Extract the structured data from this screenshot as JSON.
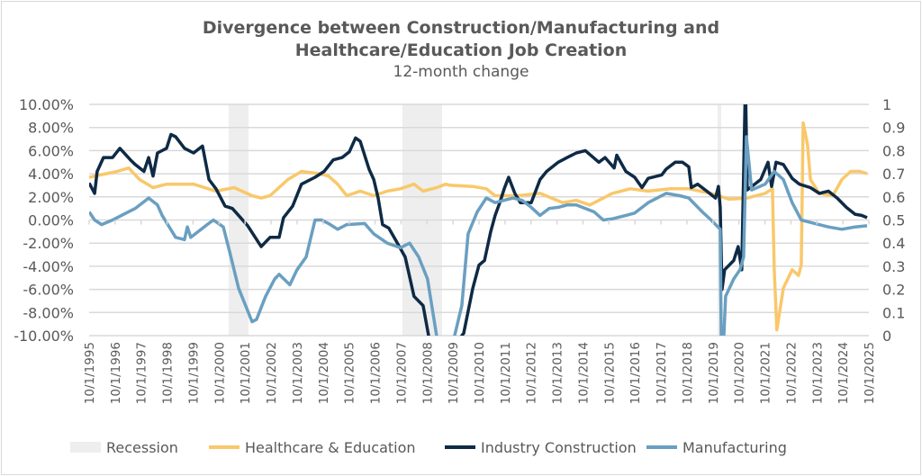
{
  "chart_data": {
    "type": "line",
    "title_line1": "Divergence between Construction/Manufacturing and",
    "title_line2": "Healthcare/Education Job Creation",
    "subtitle": "12-month change",
    "y_left": {
      "min": -10,
      "max": 10,
      "step": 2,
      "ticks": [
        "10.00%",
        "8.00%",
        "6.00%",
        "4.00%",
        "2.00%",
        "0.00%",
        "-2.00%",
        "-4.00%",
        "-6.00%",
        "-8.00%",
        "-10.00%"
      ]
    },
    "y_right": {
      "min": 0,
      "max": 1,
      "ticks": [
        "1",
        "0.9",
        "0.8",
        "0.7",
        "0.6",
        "0.5",
        "0.4",
        "0.3",
        "0.2",
        "0.1",
        "0"
      ]
    },
    "x_range": [
      1995.75,
      2025.75
    ],
    "x_ticks": [
      "10/1/1995",
      "10/1/1996",
      "10/1/1997",
      "10/1/1998",
      "10/1/1999",
      "10/1/2000",
      "10/1/2001",
      "10/1/2002",
      "10/1/2003",
      "10/1/2004",
      "10/1/2005",
      "10/1/2006",
      "10/1/2007",
      "10/1/2008",
      "10/1/2009",
      "10/1/2010",
      "10/1/2011",
      "10/1/2012",
      "10/1/2013",
      "10/1/2014",
      "10/1/2015",
      "10/1/2016",
      "10/1/2017",
      "10/1/2018",
      "10/1/2019",
      "10/1/2020",
      "10/1/2021",
      "10/1/2022",
      "10/1/2023",
      "10/1/2024",
      "10/1/2025"
    ],
    "grid": true,
    "legend_position": "bottom",
    "recession": {
      "name": "Recession",
      "color": "#eeeeee",
      "value": 1,
      "periods": [
        [
          2001.12,
          2001.88
        ],
        [
          2007.8,
          2009.33
        ],
        [
          2019.93,
          2020.07
        ]
      ]
    },
    "series": [
      {
        "name": "Healthcare & Education",
        "color": "#f9c86b",
        "points": [
          [
            1995.75,
            3.7
          ],
          [
            1996.82,
            4.2
          ],
          [
            1997.27,
            4.5
          ],
          [
            1997.69,
            3.5
          ],
          [
            1998.21,
            2.8
          ],
          [
            1998.73,
            3.1
          ],
          [
            1999.25,
            3.1
          ],
          [
            1999.77,
            3.1
          ],
          [
            2000.63,
            2.5
          ],
          [
            2001.33,
            2.8
          ],
          [
            2002.02,
            2.1
          ],
          [
            2002.37,
            1.9
          ],
          [
            2002.71,
            2.1
          ],
          [
            2003.4,
            3.5
          ],
          [
            2003.92,
            4.2
          ],
          [
            2004.62,
            4.0
          ],
          [
            2004.96,
            3.8
          ],
          [
            2005.31,
            3.1
          ],
          [
            2005.66,
            2.1
          ],
          [
            2006.18,
            2.5
          ],
          [
            2006.7,
            2.1
          ],
          [
            2007.22,
            2.5
          ],
          [
            2007.73,
            2.7
          ],
          [
            2008.25,
            3.1
          ],
          [
            2008.6,
            2.5
          ],
          [
            2009.12,
            2.8
          ],
          [
            2009.47,
            3.1
          ],
          [
            2009.64,
            3.0
          ],
          [
            2010.51,
            2.9
          ],
          [
            2011.03,
            2.7
          ],
          [
            2011.37,
            2.1
          ],
          [
            2012.24,
            2.1
          ],
          [
            2013.1,
            2.3
          ],
          [
            2013.97,
            1.5
          ],
          [
            2014.49,
            1.7
          ],
          [
            2015.01,
            1.3
          ],
          [
            2015.88,
            2.3
          ],
          [
            2016.57,
            2.7
          ],
          [
            2017.26,
            2.5
          ],
          [
            2018.13,
            2.7
          ],
          [
            2018.82,
            2.7
          ],
          [
            2019.68,
            2.3
          ],
          [
            2020.38,
            1.8
          ],
          [
            2021.07,
            1.9
          ],
          [
            2021.76,
            2.3
          ],
          [
            2022.04,
            2.7
          ],
          [
            2022.11,
            -4.3
          ],
          [
            2022.21,
            -9.5
          ],
          [
            2022.46,
            -5.9
          ],
          [
            2022.8,
            -4.3
          ],
          [
            2023.04,
            -4.8
          ],
          [
            2023.15,
            -3.9
          ],
          [
            2023.22,
            8.4
          ],
          [
            2023.39,
            6.5
          ],
          [
            2023.5,
            3.5
          ],
          [
            2023.84,
            2.3
          ],
          [
            2024.36,
            2.1
          ],
          [
            2024.71,
            3.5
          ],
          [
            2025.05,
            4.2
          ],
          [
            2025.4,
            4.2
          ],
          [
            2025.68,
            4.0
          ]
        ]
      },
      {
        "name": "Industry Construction",
        "color": "#0e2a45",
        "points": [
          [
            1995.75,
            3.2
          ],
          [
            1995.96,
            2.3
          ],
          [
            1996.06,
            4.2
          ],
          [
            1996.3,
            5.4
          ],
          [
            1996.65,
            5.4
          ],
          [
            1996.93,
            6.2
          ],
          [
            1997.34,
            5.2
          ],
          [
            1997.52,
            4.8
          ],
          [
            1997.86,
            4.2
          ],
          [
            1998.04,
            5.4
          ],
          [
            1998.21,
            3.8
          ],
          [
            1998.38,
            5.8
          ],
          [
            1998.73,
            6.2
          ],
          [
            1998.9,
            7.4
          ],
          [
            1999.08,
            7.2
          ],
          [
            1999.42,
            6.2
          ],
          [
            1999.77,
            5.8
          ],
          [
            2000.11,
            6.4
          ],
          [
            2000.36,
            3.5
          ],
          [
            2000.63,
            2.7
          ],
          [
            2000.98,
            1.2
          ],
          [
            2001.26,
            1.0
          ],
          [
            2001.5,
            0.4
          ],
          [
            2001.85,
            -0.5
          ],
          [
            2002.37,
            -2.3
          ],
          [
            2002.71,
            -1.5
          ],
          [
            2003.06,
            -1.5
          ],
          [
            2003.23,
            0.2
          ],
          [
            2003.58,
            1.2
          ],
          [
            2003.92,
            3.1
          ],
          [
            2004.44,
            3.7
          ],
          [
            2004.79,
            4.2
          ],
          [
            2005.14,
            5.2
          ],
          [
            2005.48,
            5.4
          ],
          [
            2005.76,
            5.9
          ],
          [
            2006.0,
            7.1
          ],
          [
            2006.18,
            6.8
          ],
          [
            2006.52,
            4.4
          ],
          [
            2006.7,
            3.5
          ],
          [
            2006.87,
            1.9
          ],
          [
            2007.04,
            -0.4
          ],
          [
            2007.28,
            -0.7
          ],
          [
            2007.56,
            -1.8
          ],
          [
            2007.91,
            -3.2
          ],
          [
            2008.25,
            -6.6
          ],
          [
            2008.6,
            -7.4
          ],
          [
            2008.81,
            -10
          ],
          [
            2009.29,
            -14
          ],
          [
            2009.81,
            -14
          ],
          [
            2010.09,
            -10
          ],
          [
            2010.16,
            -9.8
          ],
          [
            2010.51,
            -5.9
          ],
          [
            2010.75,
            -3.9
          ],
          [
            2010.96,
            -3.5
          ],
          [
            2011.2,
            -1.0
          ],
          [
            2011.37,
            0.4
          ],
          [
            2011.55,
            1.5
          ],
          [
            2011.72,
            2.7
          ],
          [
            2011.89,
            3.7
          ],
          [
            2012.13,
            2.3
          ],
          [
            2012.34,
            1.5
          ],
          [
            2012.76,
            1.5
          ],
          [
            2013.1,
            3.5
          ],
          [
            2013.35,
            4.2
          ],
          [
            2013.8,
            5.0
          ],
          [
            2014.14,
            5.4
          ],
          [
            2014.49,
            5.8
          ],
          [
            2014.84,
            6.0
          ],
          [
            2015.36,
            5.0
          ],
          [
            2015.6,
            5.4
          ],
          [
            2015.95,
            4.5
          ],
          [
            2016.05,
            5.6
          ],
          [
            2016.4,
            4.2
          ],
          [
            2016.74,
            3.7
          ],
          [
            2017.02,
            2.8
          ],
          [
            2017.26,
            3.6
          ],
          [
            2017.78,
            3.9
          ],
          [
            2017.95,
            4.4
          ],
          [
            2018.3,
            5.0
          ],
          [
            2018.58,
            5.0
          ],
          [
            2018.82,
            4.6
          ],
          [
            2018.92,
            2.8
          ],
          [
            2019.16,
            3.1
          ],
          [
            2019.51,
            2.5
          ],
          [
            2019.85,
            1.9
          ],
          [
            2019.96,
            2.9
          ],
          [
            2020.03,
            1.1
          ],
          [
            2020.1,
            -6.0
          ],
          [
            2020.2,
            -4.3
          ],
          [
            2020.55,
            -3.5
          ],
          [
            2020.72,
            -2.3
          ],
          [
            2020.86,
            -4.3
          ],
          [
            2021.0,
            12
          ],
          [
            2021.07,
            2.6
          ],
          [
            2021.59,
            3.5
          ],
          [
            2021.87,
            5.0
          ],
          [
            2022.01,
            2.9
          ],
          [
            2022.18,
            5.0
          ],
          [
            2022.46,
            4.8
          ],
          [
            2022.8,
            3.6
          ],
          [
            2023.08,
            3.1
          ],
          [
            2023.5,
            2.8
          ],
          [
            2023.84,
            2.3
          ],
          [
            2024.19,
            2.5
          ],
          [
            2024.53,
            1.9
          ],
          [
            2024.88,
            1.1
          ],
          [
            2025.22,
            0.5
          ],
          [
            2025.47,
            0.4
          ],
          [
            2025.68,
            0.2
          ]
        ]
      },
      {
        "name": "Manufacturing",
        "color": "#6a9fc1",
        "points": [
          [
            1995.75,
            0.7
          ],
          [
            1995.96,
            0.0
          ],
          [
            1996.23,
            -0.4
          ],
          [
            1996.65,
            0.0
          ],
          [
            1997.17,
            0.6
          ],
          [
            1997.52,
            1.0
          ],
          [
            1998.04,
            1.9
          ],
          [
            1998.38,
            1.3
          ],
          [
            1998.56,
            0.4
          ],
          [
            1999.08,
            -1.5
          ],
          [
            1999.42,
            -1.7
          ],
          [
            1999.53,
            -0.6
          ],
          [
            1999.66,
            -1.5
          ],
          [
            2000.29,
            -0.4
          ],
          [
            2000.53,
            0.0
          ],
          [
            2000.91,
            -0.6
          ],
          [
            2001.15,
            -2.7
          ],
          [
            2001.5,
            -5.9
          ],
          [
            2002.02,
            -8.8
          ],
          [
            2002.19,
            -8.6
          ],
          [
            2002.54,
            -6.6
          ],
          [
            2002.89,
            -5.1
          ],
          [
            2003.06,
            -4.7
          ],
          [
            2003.47,
            -5.6
          ],
          [
            2003.75,
            -4.3
          ],
          [
            2004.1,
            -3.2
          ],
          [
            2004.44,
            0.0
          ],
          [
            2004.69,
            0.0
          ],
          [
            2004.96,
            -0.3
          ],
          [
            2005.31,
            -0.8
          ],
          [
            2005.66,
            -0.4
          ],
          [
            2006.35,
            -0.3
          ],
          [
            2006.7,
            -1.2
          ],
          [
            2007.22,
            -2.0
          ],
          [
            2007.73,
            -2.4
          ],
          [
            2008.08,
            -2.0
          ],
          [
            2008.43,
            -3.2
          ],
          [
            2008.77,
            -5.1
          ],
          [
            2009.12,
            -10
          ],
          [
            2009.47,
            -14
          ],
          [
            2009.81,
            -10
          ],
          [
            2010.09,
            -7.4
          ],
          [
            2010.33,
            -1.2
          ],
          [
            2010.68,
            0.7
          ],
          [
            2011.03,
            1.9
          ],
          [
            2011.37,
            1.5
          ],
          [
            2012.06,
            1.9
          ],
          [
            2012.41,
            1.7
          ],
          [
            2012.76,
            1.1
          ],
          [
            2013.1,
            0.4
          ],
          [
            2013.45,
            1.0
          ],
          [
            2013.8,
            1.1
          ],
          [
            2014.14,
            1.3
          ],
          [
            2014.49,
            1.3
          ],
          [
            2015.18,
            0.7
          ],
          [
            2015.53,
            0.0
          ],
          [
            2015.88,
            0.1
          ],
          [
            2016.4,
            0.4
          ],
          [
            2016.74,
            0.6
          ],
          [
            2017.26,
            1.5
          ],
          [
            2017.95,
            2.3
          ],
          [
            2018.47,
            2.1
          ],
          [
            2018.82,
            1.9
          ],
          [
            2019.34,
            0.7
          ],
          [
            2019.68,
            0.0
          ],
          [
            2020.03,
            -0.8
          ],
          [
            2020.07,
            -10
          ],
          [
            2020.13,
            -12
          ],
          [
            2020.24,
            -6.6
          ],
          [
            2020.55,
            -5.1
          ],
          [
            2020.79,
            -4.3
          ],
          [
            2020.93,
            -3.2
          ],
          [
            2021.04,
            7.2
          ],
          [
            2021.24,
            2.6
          ],
          [
            2021.76,
            3.1
          ],
          [
            2022.11,
            4.2
          ],
          [
            2022.46,
            3.5
          ],
          [
            2022.8,
            1.5
          ],
          [
            2023.15,
            0.0
          ],
          [
            2023.67,
            -0.3
          ],
          [
            2024.19,
            -0.6
          ],
          [
            2024.71,
            -0.8
          ],
          [
            2025.22,
            -0.6
          ],
          [
            2025.68,
            -0.5
          ]
        ]
      }
    ]
  }
}
